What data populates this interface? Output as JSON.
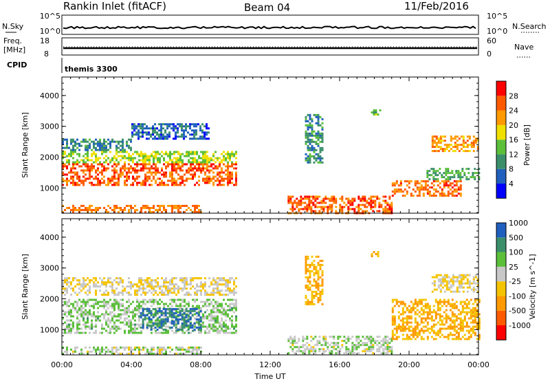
{
  "header": {
    "radar_title": "Rankin Inlet (fitACF)",
    "beam": "Beam 04",
    "date": "11/Feb/2016"
  },
  "status_panels": {
    "nsky_label": "N.Sky",
    "nsearch_label": "N.Search",
    "freq_label": "Freq.",
    "freq_unit": "[MHz]",
    "nave_label": "Nave",
    "cpid_label": "CPID",
    "cpid_value": "themis 3300",
    "noise_ticks": [
      "10^5",
      "10^0"
    ],
    "freq_ticks": [
      "18",
      "8"
    ],
    "nave_ticks": [
      "60",
      "0"
    ]
  },
  "x_axis": {
    "label": "Time UT",
    "ticks": [
      "00:00",
      "04:00",
      "08:00",
      "12:00",
      "16:00",
      "20:00",
      "00:00"
    ]
  },
  "colors": {
    "power": [
      "#0000ff",
      "#1f5fbd",
      "#3a8f6a",
      "#5bbf3a",
      "#f0e000",
      "#ff9900",
      "#ff5a00",
      "#ff0000"
    ],
    "velocity": [
      "#ff0000",
      "#ff5a00",
      "#ff9900",
      "#f5c400",
      "#c8c8c8",
      "#5bbf3a",
      "#3a8f6a",
      "#1f5fbd"
    ]
  },
  "chart_data": [
    {
      "type": "heatmap",
      "name": "power-panel",
      "ylabel": "Slant Range [km]",
      "y_ticks": [
        "1000",
        "2000",
        "3000",
        "4000"
      ],
      "ylim": [
        180,
        4600
      ],
      "xlim": [
        0,
        24
      ],
      "colorbar_label": "Power [dB]",
      "colorbar_ticks": [
        "4",
        "8",
        "12",
        "16",
        "20",
        "24",
        "28"
      ],
      "scale_range": [
        0,
        32
      ],
      "patches": [
        {
          "t": [
            0.0,
            10.0
          ],
          "r": [
            1100,
            1800
          ],
          "v": 26
        },
        {
          "t": [
            0.0,
            10.0
          ],
          "r": [
            1800,
            2200
          ],
          "v": 16
        },
        {
          "t": [
            0.0,
            4.0
          ],
          "r": [
            2200,
            2600
          ],
          "v": 9
        },
        {
          "t": [
            4.0,
            8.5
          ],
          "r": [
            2600,
            3100
          ],
          "v": 7
        },
        {
          "t": [
            0.0,
            8.0
          ],
          "r": [
            200,
            450
          ],
          "v": 24
        },
        {
          "t": [
            13.0,
            19.0
          ],
          "r": [
            200,
            750
          ],
          "v": 26
        },
        {
          "t": [
            19.0,
            23.0
          ],
          "r": [
            750,
            1250
          ],
          "v": 25
        },
        {
          "t": [
            21.0,
            24.0
          ],
          "r": [
            1250,
            1650
          ],
          "v": 12
        },
        {
          "t": [
            21.3,
            24.0
          ],
          "r": [
            2200,
            2700
          ],
          "v": 22
        },
        {
          "t": [
            14.0,
            15.0
          ],
          "r": [
            1800,
            3400
          ],
          "v": 10
        },
        {
          "t": [
            17.8,
            18.3
          ],
          "r": [
            3400,
            3550
          ],
          "v": 14
        }
      ]
    },
    {
      "type": "heatmap",
      "name": "velocity-panel",
      "ylabel": "Slant Range [km]",
      "y_ticks": [
        "1000",
        "2000",
        "3000",
        "4000"
      ],
      "ylim": [
        180,
        4600
      ],
      "xlim": [
        0,
        24
      ],
      "colorbar_label": "Velocity [m s^-1]",
      "colorbar_ticks": [
        "-1000",
        "-500",
        "-100",
        "-25",
        "25",
        "100",
        "500",
        "1000"
      ],
      "scale_range": [
        -1200,
        1200
      ],
      "patches": [
        {
          "t": [
            0.0,
            10.0
          ],
          "r": [
            900,
            2000
          ],
          "v": 320
        },
        {
          "t": [
            4.5,
            8.0
          ],
          "r": [
            1000,
            1700
          ],
          "v": 900
        },
        {
          "t": [
            0.0,
            10.0
          ],
          "r": [
            2100,
            2700
          ],
          "v": 0
        },
        {
          "t": [
            0.0,
            8.0
          ],
          "r": [
            200,
            450
          ],
          "v": 200
        },
        {
          "t": [
            13.0,
            19.0
          ],
          "r": [
            200,
            800
          ],
          "v": 250
        },
        {
          "t": [
            19.0,
            24.0
          ],
          "r": [
            700,
            2000
          ],
          "v": -300
        },
        {
          "t": [
            21.3,
            24.0
          ],
          "r": [
            2200,
            2800
          ],
          "v": 0
        },
        {
          "t": [
            14.0,
            15.0
          ],
          "r": [
            1800,
            3400
          ],
          "v": -300
        },
        {
          "t": [
            17.8,
            18.3
          ],
          "r": [
            3400,
            3550
          ],
          "v": -300
        }
      ]
    }
  ]
}
